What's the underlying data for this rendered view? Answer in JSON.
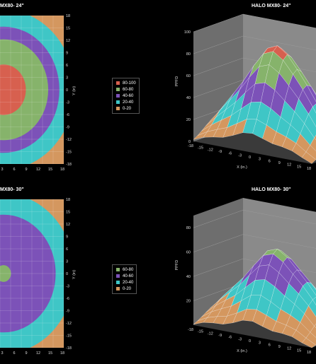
{
  "palette": {
    "0-20": "#d4975f",
    "20-40": "#3fc6c6",
    "40-60": "#7c52b8",
    "60-80": "#86b36b",
    "80-100": "#d7604f"
  },
  "tl_title": "MX80- 24\"",
  "tr_title": "HALO MX80- 24\"",
  "bl_title": "MX80- 30\"",
  "br_title": "HALO MX80- 30\"",
  "legend_24": [
    "80-100",
    "60-80",
    "40-60",
    "20-40",
    "0-20"
  ],
  "legend_30": [
    "60-80",
    "40-60",
    "20-40",
    "0-20"
  ],
  "contour_ticks_x": [
    "3",
    "6",
    "9",
    "12",
    "15",
    "18"
  ],
  "contour_ticks_y": [
    "18",
    "15",
    "12",
    "9",
    "6",
    "3",
    "0",
    "-3",
    "-6",
    "-9",
    "-12",
    "-15",
    "-18"
  ],
  "contour_ylabel": "Y (in)",
  "surface_xticks": [
    "-18",
    "-15",
    "-12",
    "-9",
    "-6",
    "-3",
    "0",
    "3",
    "6",
    "9",
    "12",
    "15",
    "18"
  ],
  "surface_xlabel": "X (in.)",
  "surface_zlabel": "PPFD",
  "surface_z_24": [
    "100",
    "80",
    "60",
    "40",
    "20",
    "0"
  ],
  "surface_z_30": [
    "80",
    "60",
    "40",
    "20"
  ],
  "chart_data": [
    {
      "type": "heatmap",
      "title": "MX80- 24\"",
      "ylabel": "Y (in)",
      "x_ticks": [
        3,
        6,
        9,
        12,
        15,
        18
      ],
      "y_ticks": [
        18,
        15,
        12,
        9,
        6,
        3,
        0,
        -3,
        -6,
        -9,
        -12,
        -15,
        -18
      ],
      "bands": [
        "0-20",
        "20-40",
        "40-60",
        "60-80",
        "80-100"
      ],
      "band_outer_radius_in": {
        "0-20": 26,
        "20-40": 19,
        "40-60": 15,
        "60-80": 12,
        "80-100": 6
      }
    },
    {
      "type": "area",
      "title": "HALO MX80- 24\"",
      "xlabel": "X (in.)",
      "zlabel": "PPFD",
      "x": [
        -18,
        -15,
        -12,
        -9,
        -6,
        -3,
        0,
        3,
        6,
        9,
        12,
        15,
        18
      ],
      "zlim": [
        0,
        100
      ],
      "peak": 90,
      "bands": [
        "0-20",
        "20-40",
        "40-60",
        "60-80",
        "80-100"
      ]
    },
    {
      "type": "heatmap",
      "title": "MX80- 30\"",
      "ylabel": "Y (in)",
      "x_ticks": [
        3,
        6,
        9,
        12,
        15,
        18
      ],
      "y_ticks": [
        18,
        15,
        12,
        9,
        6,
        3,
        0,
        -3,
        -6,
        -9,
        -12,
        -15,
        -18
      ],
      "bands": [
        "0-20",
        "20-40",
        "40-60",
        "60-80"
      ],
      "band_outer_radius_in": {
        "0-20": 26,
        "20-40": 19,
        "40-60": 14,
        "60-80": 2
      }
    },
    {
      "type": "area",
      "title": "HALO MX80- 30\"",
      "xlabel": "X (in.)",
      "zlabel": "PPFD",
      "x": [
        -18,
        -15,
        -12,
        -9,
        -6,
        -3,
        0,
        3,
        6,
        9,
        12,
        15,
        18
      ],
      "zlim": [
        0,
        90
      ],
      "peak": 65,
      "bands": [
        "0-20",
        "20-40",
        "40-60",
        "60-80"
      ]
    }
  ]
}
